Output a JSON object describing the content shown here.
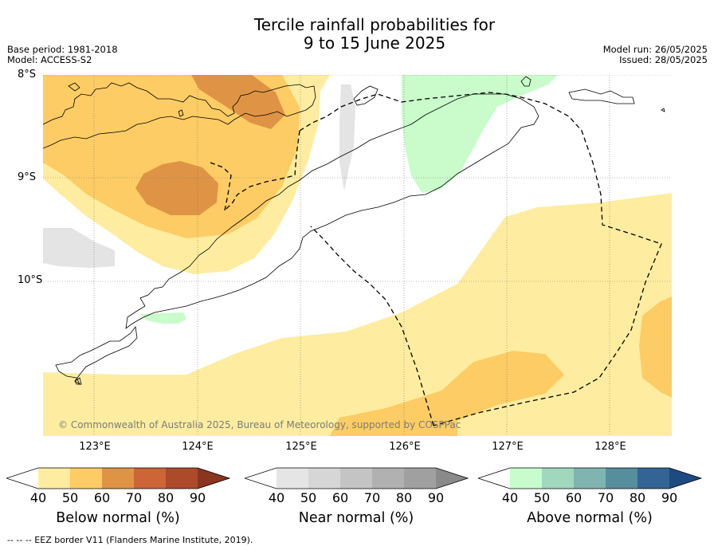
{
  "title": {
    "line1": "Tercile rainfall probabilities for",
    "line2": "9 to 15 June 2025"
  },
  "meta": {
    "base_period": "Base period: 1981-2018",
    "model": "Model: ACCESS-S2",
    "model_run": "Model run: 26/05/2025",
    "issued": "Issued: 28/05/2025"
  },
  "map": {
    "latitude_labels": [
      "8°S",
      "9°S",
      "10°S"
    ],
    "longitude_labels": [
      "123°E",
      "124°E",
      "125°E",
      "126°E",
      "127°E",
      "128°E"
    ],
    "copyright": "© Commonwealth of Australia 2025, Bureau of Meteorology, supported by COSPPac",
    "gridlines": "dotted",
    "colors": {
      "below_40_50": "#feeda0",
      "below_50_60": "#fdcc65",
      "below_60_70": "#df9445",
      "near_40_50": "#e4e4e4",
      "above_40_50": "#c9fbcb",
      "coastline": "#000000",
      "eez_border": "#000000"
    }
  },
  "legend": {
    "below": {
      "title": "Below normal (%)",
      "ticks": [
        "40",
        "50",
        "60",
        "70",
        "80",
        "90"
      ],
      "colors": [
        "#ffffff",
        "#feeda0",
        "#fdcc65",
        "#df9445",
        "#cd6537",
        "#ad4a2a",
        "#8a3520"
      ]
    },
    "near": {
      "title": "Near normal (%)",
      "ticks": [
        "40",
        "50",
        "60",
        "70",
        "80",
        "90"
      ],
      "colors": [
        "#ffffff",
        "#e5e5e5",
        "#d6d6d6",
        "#c4c4c4",
        "#b1b1b1",
        "#a0a0a0",
        "#8a8a8a"
      ]
    },
    "above": {
      "title": "Above normal (%)",
      "ticks": [
        "40",
        "50",
        "60",
        "70",
        "80",
        "90"
      ],
      "colors": [
        "#ffffff",
        "#c8fccd",
        "#a0d7bd",
        "#80b4b1",
        "#578e9d",
        "#336495",
        "#1d4a80"
      ]
    }
  },
  "footnote": "--  --  -- EEZ border V11 (Flanders Marine Institute, 2019)."
}
